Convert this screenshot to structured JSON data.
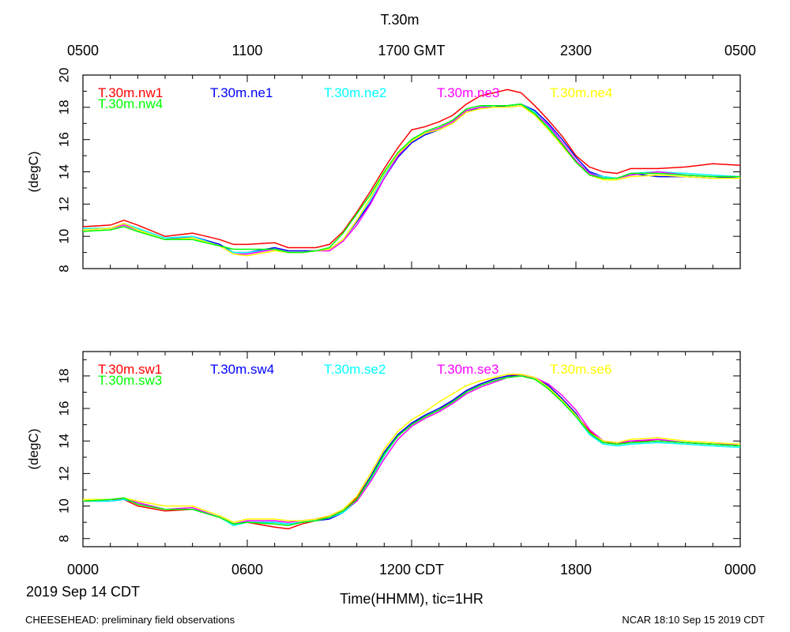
{
  "figure": {
    "title": "T.30m",
    "top_axis_ticks": [
      "0500",
      "1100",
      "1700 GMT",
      "2300",
      "0500"
    ],
    "bottom_axis_ticks": [
      "0000",
      "0600",
      "1200 CDT",
      "1800",
      "0000"
    ],
    "date_label": "2019 Sep 14 CDT",
    "xlabel": "Time(HHMM), tic=1HR",
    "footer_left": "CHEESEHEAD: preliminary field observations",
    "footer_right": "NCAR 18:10 Sep 15 2019 CDT"
  },
  "chart_data": [
    {
      "type": "line",
      "panel": "top",
      "ylabel": "(degC)",
      "xlim": [
        0,
        24
      ],
      "ylim": [
        8,
        20
      ],
      "yticks": [
        8,
        10,
        12,
        14,
        16,
        18,
        20
      ],
      "grid": false,
      "legend_placement": "top-inside",
      "x": [
        0,
        1,
        1.5,
        2,
        3,
        4,
        5,
        5.5,
        6,
        7,
        7.5,
        8,
        8.5,
        9,
        9.5,
        10,
        10.5,
        11,
        11.5,
        12,
        12.5,
        13,
        13.5,
        14,
        14.5,
        15,
        15.5,
        16,
        16.5,
        17,
        17.5,
        18,
        18.5,
        19,
        19.5,
        20,
        21,
        22,
        23,
        24
      ],
      "series": [
        {
          "name": "T.30m.nw1",
          "color": "#ff0000",
          "values": [
            10.6,
            10.7,
            11.0,
            10.7,
            10.0,
            10.2,
            9.8,
            9.5,
            9.5,
            9.6,
            9.3,
            9.3,
            9.3,
            9.5,
            10.3,
            11.5,
            12.8,
            14.2,
            15.5,
            16.6,
            16.8,
            17.1,
            17.5,
            18.2,
            18.7,
            18.9,
            19.1,
            18.9,
            18.1,
            17.2,
            16.2,
            15.0,
            14.3,
            14.0,
            13.9,
            14.2,
            14.2,
            14.3,
            14.5,
            14.4
          ]
        },
        {
          "name": "T.30m.ne1",
          "color": "#0000ff",
          "values": [
            10.4,
            10.5,
            10.8,
            10.4,
            9.8,
            10.0,
            9.5,
            9.0,
            9.0,
            9.3,
            9.1,
            9.1,
            9.1,
            9.2,
            9.8,
            10.9,
            12.1,
            13.6,
            14.9,
            15.8,
            16.3,
            16.6,
            17.0,
            17.7,
            18.0,
            18.0,
            18.1,
            18.2,
            17.8,
            17.0,
            16.0,
            14.9,
            14.0,
            13.7,
            13.6,
            13.9,
            13.7,
            13.7,
            13.6,
            13.7
          ]
        },
        {
          "name": "T.30m.ne2",
          "color": "#00ffff",
          "values": [
            10.5,
            10.5,
            10.8,
            10.5,
            9.9,
            10.0,
            9.4,
            9.0,
            9.0,
            9.2,
            9.0,
            9.0,
            9.1,
            9.2,
            9.8,
            11.0,
            12.3,
            13.8,
            15.0,
            15.9,
            16.4,
            16.7,
            17.1,
            17.8,
            18.0,
            18.1,
            18.1,
            18.2,
            17.7,
            16.8,
            15.7,
            14.6,
            13.9,
            13.7,
            13.6,
            13.9,
            14.0,
            13.9,
            13.8,
            13.7
          ]
        },
        {
          "name": "T.30m.ne3",
          "color": "#ff00ff",
          "values": [
            10.4,
            10.5,
            10.7,
            10.4,
            9.8,
            9.9,
            9.4,
            8.9,
            8.9,
            9.2,
            9.0,
            9.0,
            9.1,
            9.1,
            9.7,
            10.7,
            12.0,
            13.6,
            15.0,
            15.9,
            16.4,
            16.7,
            17.1,
            17.8,
            18.0,
            18.0,
            18.0,
            18.1,
            17.6,
            16.9,
            15.8,
            14.7,
            13.9,
            13.6,
            13.6,
            13.8,
            14.0,
            13.8,
            13.7,
            13.7
          ]
        },
        {
          "name": "T.30m.ne4",
          "color": "#ffff00",
          "values": [
            10.4,
            10.5,
            10.8,
            10.4,
            9.8,
            9.9,
            9.4,
            8.9,
            8.8,
            9.1,
            9.0,
            9.0,
            9.1,
            9.2,
            9.8,
            11.0,
            12.4,
            13.9,
            15.1,
            15.9,
            16.4,
            16.6,
            17.0,
            17.7,
            17.9,
            18.0,
            18.0,
            18.1,
            17.5,
            16.6,
            15.6,
            14.6,
            13.8,
            13.5,
            13.5,
            13.7,
            13.8,
            13.7,
            13.6,
            13.6
          ]
        },
        {
          "name": "T.30m.nw4",
          "color": "#00ff00",
          "values": [
            10.3,
            10.4,
            10.6,
            10.3,
            9.8,
            9.8,
            9.4,
            9.2,
            9.2,
            9.2,
            9.0,
            9.0,
            9.1,
            9.3,
            10.2,
            11.4,
            12.6,
            14.0,
            15.2,
            16.0,
            16.5,
            16.8,
            17.2,
            17.9,
            18.1,
            18.1,
            18.1,
            18.2,
            17.6,
            16.7,
            15.7,
            14.6,
            13.8,
            13.6,
            13.6,
            13.9,
            13.9,
            13.8,
            13.7,
            13.7
          ]
        }
      ]
    },
    {
      "type": "line",
      "panel": "bottom",
      "ylabel": "(degC)",
      "xlim": [
        0,
        24
      ],
      "ylim": [
        7.5,
        19.5
      ],
      "yticks": [
        8,
        10,
        12,
        14,
        16,
        18
      ],
      "grid": false,
      "legend_placement": "top-inside",
      "x": [
        0,
        1,
        1.5,
        2,
        3,
        4,
        5,
        5.5,
        6,
        7,
        7.5,
        8,
        8.5,
        9,
        9.5,
        10,
        10.5,
        11,
        11.5,
        12,
        12.5,
        13,
        13.5,
        14,
        14.5,
        15,
        15.5,
        16,
        16.5,
        17,
        17.5,
        18,
        18.5,
        19,
        19.5,
        20,
        21,
        22,
        23,
        24
      ],
      "series": [
        {
          "name": "T.30m.sw1",
          "color": "#ff0000",
          "values": [
            10.3,
            10.4,
            10.4,
            10.0,
            9.7,
            9.8,
            9.3,
            8.9,
            9.0,
            8.7,
            8.6,
            8.9,
            9.1,
            9.4,
            9.7,
            10.5,
            11.8,
            13.3,
            14.4,
            15.1,
            15.5,
            15.9,
            16.5,
            17.1,
            17.5,
            17.8,
            18.0,
            18.1,
            17.9,
            17.2,
            16.4,
            15.6,
            14.6,
            14.0,
            13.8,
            14.0,
            14.0,
            13.9,
            13.8,
            13.7
          ]
        },
        {
          "name": "T.30m.sw4",
          "color": "#0000ff",
          "values": [
            10.3,
            10.3,
            10.4,
            10.2,
            9.8,
            9.8,
            9.3,
            8.9,
            9.0,
            9.0,
            8.9,
            9.0,
            9.1,
            9.2,
            9.6,
            10.4,
            11.8,
            13.3,
            14.4,
            15.1,
            15.6,
            16.0,
            16.5,
            17.1,
            17.5,
            17.8,
            18.0,
            18.0,
            17.9,
            17.4,
            16.6,
            15.7,
            14.4,
            13.9,
            13.8,
            13.9,
            14.0,
            13.9,
            13.8,
            13.7
          ]
        },
        {
          "name": "T.30m.se2",
          "color": "#00ffff",
          "values": [
            10.3,
            10.3,
            10.4,
            10.2,
            9.8,
            9.8,
            9.3,
            8.8,
            9.0,
            9.0,
            8.9,
            9.0,
            9.1,
            9.3,
            9.6,
            10.3,
            11.6,
            13.1,
            14.3,
            15.0,
            15.5,
            15.9,
            16.4,
            17.0,
            17.4,
            17.7,
            17.9,
            18.0,
            17.8,
            17.3,
            16.4,
            15.5,
            14.4,
            13.8,
            13.7,
            13.8,
            13.9,
            13.8,
            13.7,
            13.6
          ]
        },
        {
          "name": "T.30m.se3",
          "color": "#ff00ff",
          "values": [
            10.3,
            10.4,
            10.5,
            10.2,
            9.8,
            9.9,
            9.3,
            8.9,
            9.1,
            9.1,
            9.0,
            9.1,
            9.2,
            9.4,
            9.7,
            10.3,
            11.5,
            12.9,
            14.1,
            14.9,
            15.4,
            15.8,
            16.3,
            16.9,
            17.3,
            17.6,
            17.9,
            18.0,
            17.9,
            17.5,
            16.8,
            15.9,
            14.7,
            14.0,
            13.9,
            14.0,
            14.1,
            13.9,
            13.8,
            13.8
          ]
        },
        {
          "name": "T.30m.se6",
          "color": "#ffff00",
          "values": [
            10.4,
            10.4,
            10.5,
            10.3,
            10.0,
            10.0,
            9.4,
            9.0,
            9.2,
            9.2,
            9.1,
            9.1,
            9.2,
            9.4,
            9.8,
            10.6,
            12.0,
            13.5,
            14.6,
            15.3,
            15.8,
            16.4,
            16.9,
            17.4,
            17.7,
            17.9,
            18.1,
            18.1,
            17.9,
            17.3,
            16.5,
            15.6,
            14.5,
            14.0,
            13.9,
            14.1,
            14.2,
            14.0,
            13.9,
            13.8
          ]
        },
        {
          "name": "T.30m.sw3",
          "color": "#00ff00",
          "values": [
            10.3,
            10.4,
            10.5,
            10.1,
            9.8,
            9.8,
            9.3,
            8.9,
            9.0,
            8.9,
            8.8,
            9.0,
            9.1,
            9.3,
            9.7,
            10.4,
            11.7,
            13.2,
            14.3,
            15.0,
            15.5,
            15.9,
            16.4,
            17.0,
            17.4,
            17.7,
            17.9,
            18.0,
            17.8,
            17.2,
            16.4,
            15.5,
            14.5,
            13.9,
            13.8,
            13.9,
            14.0,
            13.9,
            13.8,
            13.7
          ]
        }
      ]
    }
  ]
}
